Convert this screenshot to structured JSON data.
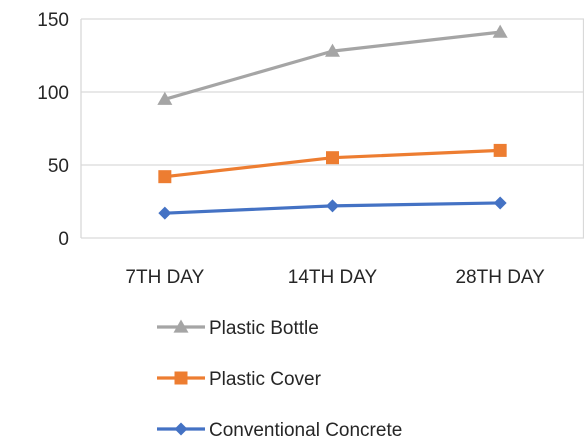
{
  "chart_data": {
    "type": "line",
    "categories": [
      "7TH DAY",
      "14TH DAY",
      "28TH DAY"
    ],
    "series": [
      {
        "name": "Plastic Bottle",
        "values": [
          95,
          128,
          141
        ],
        "color": "#A5A5A5",
        "marker": "triangle"
      },
      {
        "name": "Plastic Cover",
        "values": [
          42,
          55,
          60
        ],
        "color": "#ED7D31",
        "marker": "square"
      },
      {
        "name": "Conventional Concrete",
        "values": [
          17,
          22,
          24
        ],
        "color": "#4472C4",
        "marker": "diamond"
      }
    ],
    "yticks": [
      0,
      50,
      100,
      150
    ],
    "ylim": [
      0,
      150
    ],
    "grid": true,
    "legend_position": "bottom",
    "colors": {
      "gridline": "#D9D9D9",
      "text": "#262626"
    }
  }
}
